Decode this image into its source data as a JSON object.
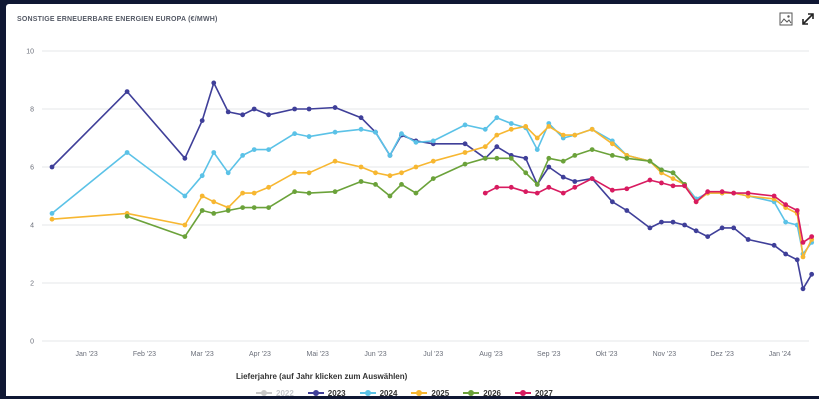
{
  "header": {
    "title": "SONSTIGE ERNEUERBARE ENERGIEN EUROPA (€/MWH)",
    "image_icon": "image-icon",
    "expand_icon": "expand-arrows-icon"
  },
  "legend": {
    "title": "Lieferjahre (auf Jahr klicken zum Auswählen)"
  },
  "chart_data": {
    "type": "line",
    "title": "SONSTIGE ERNEUERBARE ENERGIEN EUROPA (€/MWH)",
    "ylim": [
      0,
      10
    ],
    "yticks": [
      0,
      2,
      4,
      6,
      8,
      10
    ],
    "xlim": [
      0,
      13
    ],
    "xticks": [
      {
        "x": 0.6,
        "label": "Jan '23"
      },
      {
        "x": 1.6,
        "label": "Feb '23"
      },
      {
        "x": 2.6,
        "label": "Mar '23"
      },
      {
        "x": 3.6,
        "label": "Apr '23"
      },
      {
        "x": 4.6,
        "label": "Mai '23"
      },
      {
        "x": 5.6,
        "label": "Jun '23"
      },
      {
        "x": 6.6,
        "label": "Jul '23"
      },
      {
        "x": 7.6,
        "label": "Aug '23"
      },
      {
        "x": 8.6,
        "label": "Sep '23"
      },
      {
        "x": 9.6,
        "label": "Okt '23"
      },
      {
        "x": 10.6,
        "label": "Nov '23"
      },
      {
        "x": 11.6,
        "label": "Dez '23"
      },
      {
        "x": 12.6,
        "label": "Jan '24"
      }
    ],
    "grid": "horizontal",
    "legend_position": "bottom-center",
    "series": [
      {
        "name": "2022",
        "color": "#c8c8c8",
        "visible": false,
        "points": []
      },
      {
        "name": "2023",
        "color": "#3f3f99",
        "visible": true,
        "points": [
          [
            0.0,
            6.0
          ],
          [
            1.3,
            8.6
          ],
          [
            2.3,
            6.3
          ],
          [
            2.6,
            7.6
          ],
          [
            2.8,
            8.9
          ],
          [
            3.05,
            7.9
          ],
          [
            3.3,
            7.8
          ],
          [
            3.5,
            8.0
          ],
          [
            3.75,
            7.8
          ],
          [
            4.2,
            8.0
          ],
          [
            4.45,
            8.0
          ],
          [
            4.9,
            8.05
          ],
          [
            5.35,
            7.7
          ],
          [
            5.6,
            7.2
          ],
          [
            5.85,
            6.4
          ],
          [
            6.05,
            7.1
          ],
          [
            6.3,
            6.9
          ],
          [
            6.6,
            6.8
          ],
          [
            7.15,
            6.8
          ],
          [
            7.5,
            6.3
          ],
          [
            7.7,
            6.7
          ],
          [
            7.95,
            6.4
          ],
          [
            8.2,
            6.3
          ],
          [
            8.4,
            5.4
          ],
          [
            8.6,
            6.0
          ],
          [
            8.85,
            5.65
          ],
          [
            9.05,
            5.5
          ],
          [
            9.35,
            5.6
          ],
          [
            9.7,
            4.8
          ],
          [
            9.95,
            4.5
          ],
          [
            10.35,
            3.9
          ],
          [
            10.55,
            4.1
          ],
          [
            10.75,
            4.1
          ],
          [
            10.95,
            4.0
          ],
          [
            11.15,
            3.8
          ],
          [
            11.35,
            3.6
          ],
          [
            11.6,
            3.9
          ],
          [
            11.8,
            3.9
          ],
          [
            12.05,
            3.5
          ],
          [
            12.5,
            3.3
          ],
          [
            12.7,
            3.0
          ],
          [
            12.9,
            2.8
          ],
          [
            13.0,
            1.8
          ],
          [
            13.15,
            2.3
          ]
        ]
      },
      {
        "name": "2024",
        "color": "#5bc2e7",
        "visible": true,
        "points": [
          [
            0.0,
            4.4
          ],
          [
            1.3,
            6.5
          ],
          [
            2.3,
            5.0
          ],
          [
            2.6,
            5.7
          ],
          [
            2.8,
            6.5
          ],
          [
            3.05,
            5.8
          ],
          [
            3.3,
            6.4
          ],
          [
            3.5,
            6.6
          ],
          [
            3.75,
            6.6
          ],
          [
            4.2,
            7.15
          ],
          [
            4.45,
            7.05
          ],
          [
            4.9,
            7.2
          ],
          [
            5.35,
            7.3
          ],
          [
            5.6,
            7.2
          ],
          [
            5.85,
            6.4
          ],
          [
            6.05,
            7.15
          ],
          [
            6.3,
            6.85
          ],
          [
            6.6,
            6.9
          ],
          [
            7.15,
            7.45
          ],
          [
            7.5,
            7.3
          ],
          [
            7.7,
            7.7
          ],
          [
            7.95,
            7.5
          ],
          [
            8.2,
            7.35
          ],
          [
            8.4,
            6.6
          ],
          [
            8.6,
            7.5
          ],
          [
            8.85,
            7.0
          ],
          [
            9.05,
            7.1
          ],
          [
            9.35,
            7.3
          ],
          [
            9.7,
            6.9
          ],
          [
            9.95,
            6.4
          ],
          [
            10.35,
            6.2
          ],
          [
            10.55,
            5.9
          ],
          [
            10.75,
            5.8
          ],
          [
            10.95,
            5.4
          ],
          [
            11.15,
            4.9
          ],
          [
            11.35,
            5.1
          ],
          [
            11.6,
            5.1
          ],
          [
            11.8,
            5.1
          ],
          [
            12.05,
            5.0
          ],
          [
            12.5,
            4.8
          ],
          [
            12.7,
            4.1
          ],
          [
            12.9,
            4.0
          ],
          [
            13.0,
            3.0
          ],
          [
            13.15,
            3.4
          ]
        ]
      },
      {
        "name": "2025",
        "color": "#f7b731",
        "visible": true,
        "points": [
          [
            0.0,
            4.2
          ],
          [
            1.3,
            4.4
          ],
          [
            2.3,
            4.0
          ],
          [
            2.6,
            5.0
          ],
          [
            2.8,
            4.8
          ],
          [
            3.05,
            4.6
          ],
          [
            3.3,
            5.1
          ],
          [
            3.5,
            5.1
          ],
          [
            3.75,
            5.3
          ],
          [
            4.2,
            5.8
          ],
          [
            4.45,
            5.8
          ],
          [
            4.9,
            6.2
          ],
          [
            5.35,
            6.0
          ],
          [
            5.6,
            5.8
          ],
          [
            5.85,
            5.7
          ],
          [
            6.05,
            5.8
          ],
          [
            6.3,
            6.0
          ],
          [
            6.6,
            6.2
          ],
          [
            7.15,
            6.5
          ],
          [
            7.5,
            6.7
          ],
          [
            7.7,
            7.1
          ],
          [
            7.95,
            7.3
          ],
          [
            8.2,
            7.4
          ],
          [
            8.4,
            7.0
          ],
          [
            8.6,
            7.4
          ],
          [
            8.85,
            7.1
          ],
          [
            9.05,
            7.1
          ],
          [
            9.35,
            7.3
          ],
          [
            9.7,
            6.8
          ],
          [
            9.95,
            6.4
          ],
          [
            10.35,
            6.2
          ],
          [
            10.55,
            5.8
          ],
          [
            10.75,
            5.6
          ],
          [
            10.95,
            5.4
          ],
          [
            11.15,
            4.8
          ],
          [
            11.35,
            5.1
          ],
          [
            11.6,
            5.1
          ],
          [
            11.8,
            5.1
          ],
          [
            12.05,
            5.0
          ],
          [
            12.5,
            4.9
          ],
          [
            12.7,
            4.6
          ],
          [
            12.9,
            4.4
          ],
          [
            13.0,
            2.9
          ],
          [
            13.15,
            3.5
          ]
        ]
      },
      {
        "name": "2026",
        "color": "#6ba23a",
        "visible": true,
        "points": [
          [
            1.3,
            4.3
          ],
          [
            2.3,
            3.6
          ],
          [
            2.6,
            4.5
          ],
          [
            2.8,
            4.4
          ],
          [
            3.05,
            4.5
          ],
          [
            3.3,
            4.6
          ],
          [
            3.5,
            4.6
          ],
          [
            3.75,
            4.6
          ],
          [
            4.2,
            5.15
          ],
          [
            4.45,
            5.1
          ],
          [
            4.9,
            5.15
          ],
          [
            5.35,
            5.5
          ],
          [
            5.6,
            5.4
          ],
          [
            5.85,
            5.0
          ],
          [
            6.05,
            5.4
          ],
          [
            6.3,
            5.1
          ],
          [
            6.6,
            5.6
          ],
          [
            7.15,
            6.1
          ],
          [
            7.5,
            6.3
          ],
          [
            7.7,
            6.3
          ],
          [
            7.95,
            6.3
          ],
          [
            8.2,
            5.8
          ],
          [
            8.4,
            5.4
          ],
          [
            8.6,
            6.3
          ],
          [
            8.85,
            6.2
          ],
          [
            9.05,
            6.4
          ],
          [
            9.35,
            6.6
          ],
          [
            9.7,
            6.4
          ],
          [
            9.95,
            6.3
          ],
          [
            10.35,
            6.2
          ],
          [
            10.55,
            5.9
          ],
          [
            10.75,
            5.8
          ],
          [
            10.95,
            5.4
          ]
        ]
      },
      {
        "name": "2027",
        "color": "#d81b60",
        "visible": true,
        "points": [
          [
            7.5,
            5.1
          ],
          [
            7.7,
            5.3
          ],
          [
            7.95,
            5.3
          ],
          [
            8.2,
            5.15
          ],
          [
            8.4,
            5.1
          ],
          [
            8.6,
            5.3
          ],
          [
            8.85,
            5.1
          ],
          [
            9.05,
            5.3
          ],
          [
            9.35,
            5.6
          ],
          [
            9.7,
            5.2
          ],
          [
            9.95,
            5.25
          ],
          [
            10.35,
            5.55
          ],
          [
            10.55,
            5.45
          ],
          [
            10.75,
            5.35
          ],
          [
            10.95,
            5.35
          ],
          [
            11.15,
            4.8
          ],
          [
            11.35,
            5.15
          ],
          [
            11.6,
            5.15
          ],
          [
            11.8,
            5.1
          ],
          [
            12.05,
            5.1
          ],
          [
            12.5,
            5.0
          ],
          [
            12.7,
            4.7
          ],
          [
            12.9,
            4.5
          ],
          [
            13.0,
            3.4
          ],
          [
            13.15,
            3.6
          ]
        ]
      }
    ]
  }
}
